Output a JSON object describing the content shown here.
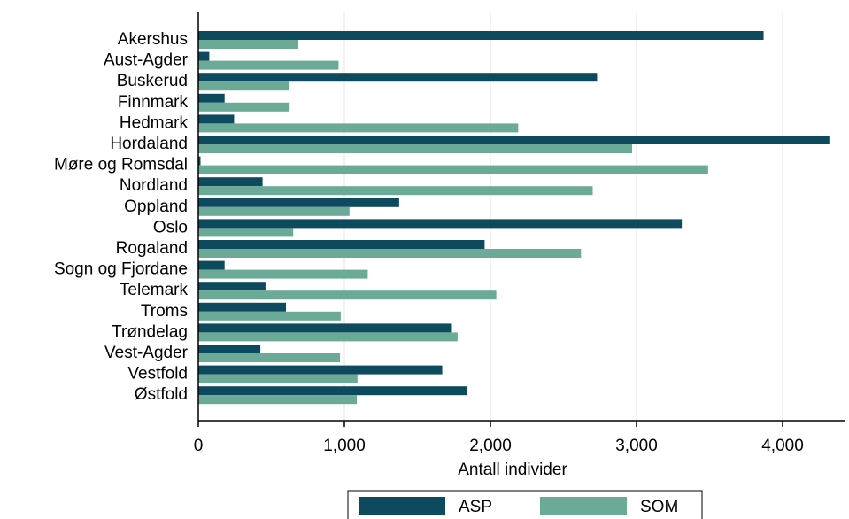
{
  "chart_data": {
    "type": "bar",
    "orientation": "horizontal",
    "categories": [
      "Akershus",
      "Aust-Agder",
      "Buskerud",
      "Finnmark",
      "Hedmark",
      "Hordaland",
      "Møre og Romsdal",
      "Nordland",
      "Oppland",
      "Oslo",
      "Rogaland",
      "Sogn og Fjordane",
      "Telemark",
      "Troms",
      "Trøndelag",
      "Vest-Agder",
      "Vestfold",
      "Østfold"
    ],
    "series": [
      {
        "name": "ASP",
        "color": "#0d4a5e",
        "values": [
          3870,
          75,
          2730,
          180,
          245,
          4320,
          15,
          440,
          1375,
          3310,
          1960,
          180,
          460,
          600,
          1730,
          425,
          1670,
          1840
        ]
      },
      {
        "name": "SOM",
        "color": "#6aaa96",
        "values": [
          685,
          960,
          625,
          625,
          2190,
          2970,
          3490,
          2700,
          1035,
          650,
          2620,
          1160,
          2040,
          975,
          1775,
          970,
          1090,
          1085
        ]
      }
    ],
    "xlabel": "Antall individer",
    "xlim": [
      0,
      4400
    ],
    "xticks": [
      0,
      1000,
      2000,
      3000,
      4000
    ],
    "xtick_labels": [
      "0",
      "1,000",
      "2,000",
      "3,000",
      "4,000"
    ],
    "grid": true,
    "legend_position": "bottom"
  }
}
